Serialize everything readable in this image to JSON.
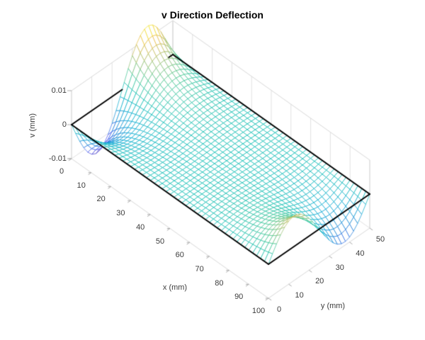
{
  "chart_data": {
    "type": "surface",
    "title": "v Direction Deflection",
    "xlabel": "x (mm)",
    "ylabel": "y (mm)",
    "zlabel": "v (mm)",
    "xlim": [
      0,
      100
    ],
    "ylim": [
      0,
      50
    ],
    "zlim": [
      -0.01,
      0.01
    ],
    "x_ticks": [
      "0",
      "10",
      "20",
      "30",
      "40",
      "50",
      "60",
      "70",
      "80",
      "90",
      "100"
    ],
    "x_tick_values": [
      0,
      10,
      20,
      30,
      40,
      50,
      60,
      70,
      80,
      90,
      100
    ],
    "y_ticks": [
      "0",
      "10",
      "20",
      "30",
      "40",
      "50"
    ],
    "y_tick_values": [
      0,
      10,
      20,
      30,
      40,
      50
    ],
    "z_ticks": [
      "-0.01",
      "0",
      "0.01"
    ],
    "z_tick_values": [
      -0.01,
      0,
      0.01
    ],
    "view": {
      "azimuth": -37.5,
      "elevation": 30
    },
    "grid": true,
    "surface": {
      "description": "plate deflection mode: v(x,y) = sin(2*pi*y/50mm) * (A_right*exp(-(100-x)/L) - A_left*exp(-x/L)); bumps localized at x=0 and x=100 edges, flat (v=0) in the middle",
      "plate_mm": [
        100,
        50
      ],
      "grid_step_mm": 2,
      "A_left_mm": 0.0135,
      "A_right_mm": 0.009,
      "decay_L_mm": 11,
      "color_norm": [
        -0.0135,
        0.0135
      ],
      "colormap": "parula",
      "colormap_stops": [
        [
          0.0,
          62,
          39,
          169
        ],
        [
          0.125,
          72,
          82,
          244
        ],
        [
          0.25,
          20,
          129,
          214
        ],
        [
          0.375,
          3,
          168,
          210
        ],
        [
          0.5,
          6,
          187,
          177
        ],
        [
          0.625,
          68,
          198,
          144
        ],
        [
          0.75,
          165,
          190,
          107
        ],
        [
          0.875,
          234,
          186,
          63
        ],
        [
          1.0,
          249,
          251,
          21
        ]
      ],
      "outline_color": "#000000",
      "outline_hidden_left_edge_y_mm": [
        25,
        48
      ],
      "face_color": "#ffffff"
    },
    "colors": {
      "background": "#ffffff",
      "box_edge": "#d9d9d9",
      "wall_grid": "#e2e2e2",
      "tick_mark": "#aaaaaa",
      "tick_label": "#3c3c3c",
      "title": "#000000"
    }
  }
}
